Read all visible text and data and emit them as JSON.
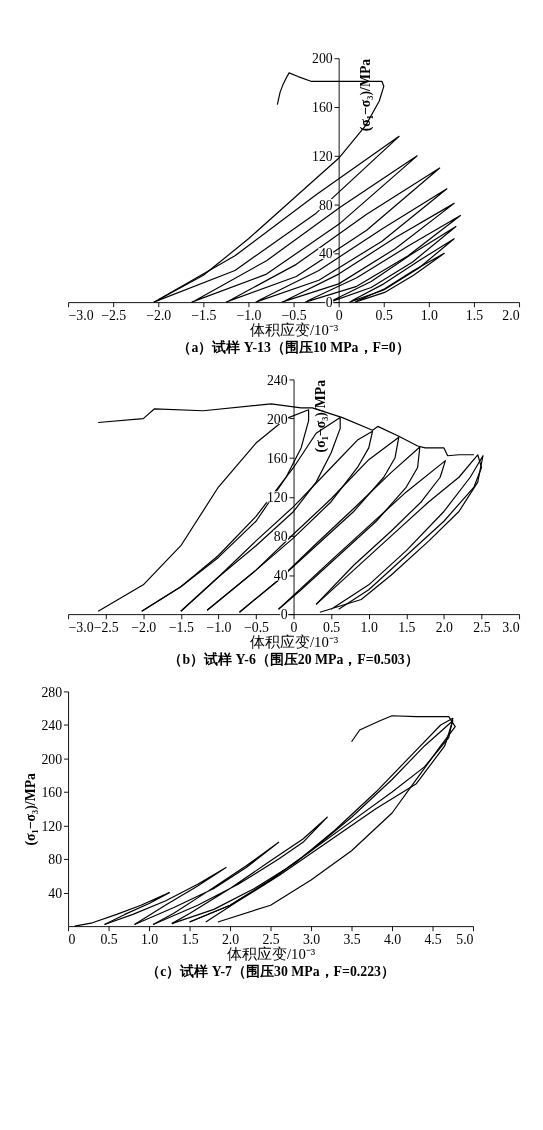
{
  "chart_data": [
    {
      "type": "line",
      "title": "（a）试样 Y-13（围压10 MPa，F=0）",
      "xlabel": "体积应变/10⁻³",
      "ylabel": "(σ₁−σ₃)/MPa",
      "grid": false,
      "legend": false,
      "xlim": [
        -3,
        2
      ],
      "xticks": [
        {
          "value": -3,
          "label": "−3.0"
        },
        {
          "value": -2.5,
          "label": "−2.5"
        },
        {
          "value": -2,
          "label": "−2.0"
        },
        {
          "value": -1.5,
          "label": "−1.5"
        },
        {
          "value": -1,
          "label": "−1.0"
        },
        {
          "value": -0.5,
          "label": "−0.5"
        },
        0,
        0.5,
        {
          "value": 1,
          "label": "1.0"
        },
        1.5,
        {
          "value": 2,
          "label": "2.0"
        }
      ],
      "ylim": [
        0,
        200
      ],
      "yticks": [
        0,
        40,
        80,
        120,
        160,
        200
      ],
      "series": [
        {
          "color": "#000000",
          "x": [
            -2.05,
            -1.15,
            -0.25,
            0.67,
            -0.25,
            -1.15,
            -2.0
          ],
          "values": [
            0,
            26,
            73,
            136,
            88,
            38,
            2
          ]
        },
        {
          "color": "#000000",
          "x": [
            -1.63,
            -0.8,
            0.02,
            0.87,
            0.02,
            -0.8,
            -1.6
          ],
          "values": [
            0,
            23,
            65,
            120,
            78,
            34,
            1
          ]
        },
        {
          "color": "#000000",
          "x": [
            -1.25,
            -0.47,
            0.31,
            1.12,
            0.31,
            -0.47,
            -1.22
          ],
          "values": [
            0,
            21,
            59,
            110,
            72,
            31,
            1
          ]
        },
        {
          "color": "#000000",
          "x": [
            -0.92,
            -0.22,
            0.48,
            1.2,
            0.48,
            -0.22,
            -0.9
          ],
          "values": [
            0,
            18,
            50,
            93,
            60,
            26,
            1
          ]
        },
        {
          "color": "#000000",
          "x": [
            -0.63,
            0,
            0.63,
            1.28,
            0.63,
            0,
            -0.6
          ],
          "values": [
            0,
            15,
            44,
            81,
            53,
            23,
            1
          ]
        },
        {
          "color": "#000000",
          "x": [
            -0.37,
            0.2,
            0.77,
            1.35,
            0.77,
            0.2,
            -0.35
          ],
          "values": [
            0,
            13,
            38,
            71,
            46,
            20,
            1
          ]
        },
        {
          "color": "#000000",
          "x": [
            -0.1,
            0.36,
            0.82,
            1.3,
            0.82,
            0.36,
            -0.08
          ],
          "values": [
            0,
            12,
            33,
            62,
            40,
            17,
            1
          ]
        },
        {
          "color": "#000000",
          "x": [
            0.12,
            0.5,
            0.89,
            1.28,
            0.89,
            0.5,
            0.14
          ],
          "values": [
            0,
            10,
            28,
            52,
            34,
            15,
            1
          ]
        },
        {
          "color": "#000000",
          "x": [
            0.18,
            0.51,
            0.83,
            1.17,
            0.83,
            0.51,
            0.2
          ],
          "values": [
            0,
            8,
            22,
            40,
            26,
            11,
            1
          ]
        },
        {
          "color": "#000000",
          "x": [
            -2.05,
            -1.5,
            -1.0,
            -0.5,
            0,
            0.3,
            0.45,
            0.5,
            0.48,
            0.3,
            0,
            -0.3,
            -0.45,
            -0.55,
            -0.58,
            -0.62,
            -0.65,
            -0.68
          ],
          "values": [
            0,
            22,
            52,
            85,
            118,
            145,
            165,
            177,
            181,
            181,
            181,
            181,
            185,
            188,
            184,
            178,
            172,
            162
          ]
        }
      ]
    },
    {
      "type": "line",
      "title": "（b）试样 Y-6（围压20 MPa，F=0.503）",
      "xlabel": "体积应变/10⁻³",
      "ylabel": "(σ₁−σ₃)/MPa",
      "grid": false,
      "legend": false,
      "xlim": [
        -3,
        3
      ],
      "xticks": [
        {
          "value": -3,
          "label": "−3.0"
        },
        {
          "value": -2.5,
          "label": "−2.5"
        },
        {
          "value": -2,
          "label": "−2.0"
        },
        {
          "value": -1.5,
          "label": "−1.5"
        },
        {
          "value": -1,
          "label": "−1.0"
        },
        {
          "value": -0.5,
          "label": "−0.5"
        },
        0,
        0.5,
        {
          "value": 1,
          "label": "1.0"
        },
        1.5,
        {
          "value": 2,
          "label": "2.0"
        },
        2.5,
        {
          "value": 3,
          "label": "3.0"
        }
      ],
      "ylim": [
        0,
        240
      ],
      "yticks": [
        0,
        40,
        80,
        120,
        160,
        200,
        240
      ],
      "series": [
        {
          "color": "#000000",
          "x": [
            -2.6,
            -2.0,
            -1.85,
            -1.2,
            -0.3,
            0.1,
            0.25,
            0.65,
            1.05,
            1.12,
            1.4,
            1.65,
            1.75,
            2.0,
            2.05,
            2.2,
            2.4
          ],
          "values": [
            196,
            200,
            210,
            208,
            215,
            211,
            211,
            201,
            188,
            192,
            182,
            172,
            170,
            170,
            162,
            163,
            163
          ]
        },
        {
          "color": "#000000",
          "x": [
            -2.6,
            -2.0,
            -1.5,
            -1.0,
            -0.5,
            -0.1,
            0.2,
            0.2,
            0.1,
            -0.1,
            -0.5,
            -1.0,
            -1.5,
            -2.02
          ],
          "values": [
            3,
            30,
            70,
            130,
            175,
            200,
            209,
            198,
            170,
            140,
            95,
            58,
            28,
            3
          ]
        },
        {
          "color": "#000000",
          "x": [
            -2.02,
            -1.5,
            -1.0,
            -0.5,
            0,
            0.3,
            0.62,
            0.62,
            0.5,
            0.3,
            0,
            -0.5,
            -1.0,
            -1.5
          ],
          "values": [
            3,
            28,
            60,
            100,
            150,
            185,
            201,
            190,
            165,
            135,
            105,
            70,
            38,
            3
          ]
        },
        {
          "color": "#000000",
          "x": [
            -1.5,
            -1.0,
            -0.5,
            0,
            0.5,
            0.85,
            1.05,
            1.0,
            0.85,
            0.5,
            0,
            -0.5,
            -1.15
          ],
          "values": [
            3,
            38,
            75,
            110,
            150,
            178,
            187,
            170,
            150,
            115,
            78,
            45,
            4
          ]
        },
        {
          "color": "#000000",
          "x": [
            -1.15,
            -0.5,
            0,
            0.5,
            1.0,
            1.4,
            1.35,
            1.2,
            0.8,
            0.3,
            -0.2,
            -0.72
          ],
          "values": [
            4,
            45,
            82,
            118,
            158,
            181,
            160,
            140,
            105,
            70,
            35,
            2
          ]
        },
        {
          "color": "#000000",
          "x": [
            -0.72,
            -0.2,
            0.3,
            0.8,
            1.3,
            1.68,
            1.65,
            1.5,
            1.1,
            0.6,
            0.1,
            -0.2
          ],
          "values": [
            2,
            35,
            72,
            108,
            145,
            171,
            150,
            130,
            95,
            60,
            25,
            5
          ]
        },
        {
          "color": "#000000",
          "x": [
            -0.2,
            0.5,
            1.0,
            1.5,
            2.02,
            1.95,
            1.7,
            1.3,
            0.8,
            0.3
          ],
          "values": [
            5,
            55,
            90,
            125,
            157,
            140,
            115,
            85,
            50,
            10
          ]
        },
        {
          "color": "#000000",
          "x": [
            0.3,
            0.8,
            1.3,
            1.8,
            2.2,
            2.45,
            2.5,
            2.4,
            2.0,
            1.5,
            1.0,
            0.6
          ],
          "values": [
            10,
            45,
            80,
            115,
            140,
            163,
            150,
            130,
            95,
            60,
            25,
            5
          ]
        },
        {
          "color": "#000000",
          "x": [
            0.5,
            1.0,
            1.5,
            2.0,
            2.35,
            2.52,
            2.45,
            2.2,
            1.8,
            1.3,
            0.9,
            0.35
          ],
          "values": [
            5,
            30,
            65,
            105,
            140,
            162,
            135,
            105,
            75,
            40,
            15,
            2
          ]
        }
      ]
    },
    {
      "type": "line",
      "title": "（c）试样 Y-7（围压30 MPa，F=0.223）",
      "xlabel": "体积应变/10⁻³",
      "ylabel": "(σ₁−σ₃)/MPa",
      "grid": false,
      "legend": false,
      "xlim": [
        0,
        5
      ],
      "xticks": [
        0,
        0.5,
        {
          "value": 1,
          "label": "1.0"
        },
        1.5,
        {
          "value": 2,
          "label": "2.0"
        },
        2.5,
        {
          "value": 3,
          "label": "3.0"
        },
        3.5,
        {
          "value": 4,
          "label": "4.0"
        },
        4.5,
        {
          "value": 5,
          "label": "5.0"
        }
      ],
      "ylim": [
        0,
        280
      ],
      "yticks": [
        40,
        80,
        120,
        160,
        200,
        240,
        280
      ],
      "series": [
        {
          "color": "#000000",
          "x": [
            0.08,
            0.3,
            0.6,
            0.9,
            1.25,
            1.0,
            0.7,
            0.45
          ],
          "values": [
            0,
            4,
            14,
            25,
            40,
            27,
            14,
            2
          ]
        },
        {
          "color": "#000000",
          "x": [
            0.45,
            0.8,
            1.2,
            1.6,
            1.95,
            1.6,
            1.2,
            0.82
          ],
          "values": [
            2,
            14,
            30,
            50,
            70,
            48,
            25,
            2
          ]
        },
        {
          "color": "#000000",
          "x": [
            0.82,
            1.3,
            1.8,
            2.2,
            2.6,
            2.2,
            1.7,
            1.3,
            1.05
          ],
          "values": [
            2,
            22,
            45,
            70,
            100,
            72,
            40,
            15,
            2
          ]
        },
        {
          "color": "#000000",
          "x": [
            1.05,
            1.6,
            2.1,
            2.6,
            2.9,
            3.2,
            2.9,
            2.5,
            2.0,
            1.5,
            1.28
          ],
          "values": [
            2,
            25,
            50,
            80,
            100,
            130,
            104,
            78,
            45,
            15,
            3
          ]
        },
        {
          "color": "#000000",
          "x": [
            1.28,
            1.8,
            2.3,
            2.8,
            3.3,
            3.8,
            4.3,
            4.6,
            4.75,
            4.7,
            4.4,
            4.0,
            3.5,
            3.0,
            2.5,
            2.0,
            1.5
          ],
          "values": [
            3,
            20,
            45,
            75,
            115,
            160,
            210,
            240,
            248,
            225,
            190,
            160,
            125,
            90,
            55,
            25,
            5
          ]
        },
        {
          "color": "#000000",
          "x": [
            1.5,
            2.0,
            2.5,
            3.0,
            3.5,
            4.0,
            4.4,
            4.75,
            4.65,
            4.3,
            3.8,
            3.2,
            2.6,
            2.1,
            1.7
          ],
          "values": [
            5,
            25,
            55,
            90,
            130,
            175,
            215,
            245,
            215,
            170,
            140,
            100,
            60,
            30,
            5
          ]
        },
        {
          "color": "#000000",
          "x": [
            1.85,
            2.5,
            3.0,
            3.5,
            4.0,
            4.3,
            4.6,
            4.78,
            4.7,
            4.3,
            4.0,
            3.85,
            3.6,
            3.5
          ],
          "values": [
            5,
            25,
            55,
            90,
            135,
            175,
            215,
            238,
            250,
            250,
            251,
            245,
            234,
            220
          ]
        }
      ]
    }
  ]
}
